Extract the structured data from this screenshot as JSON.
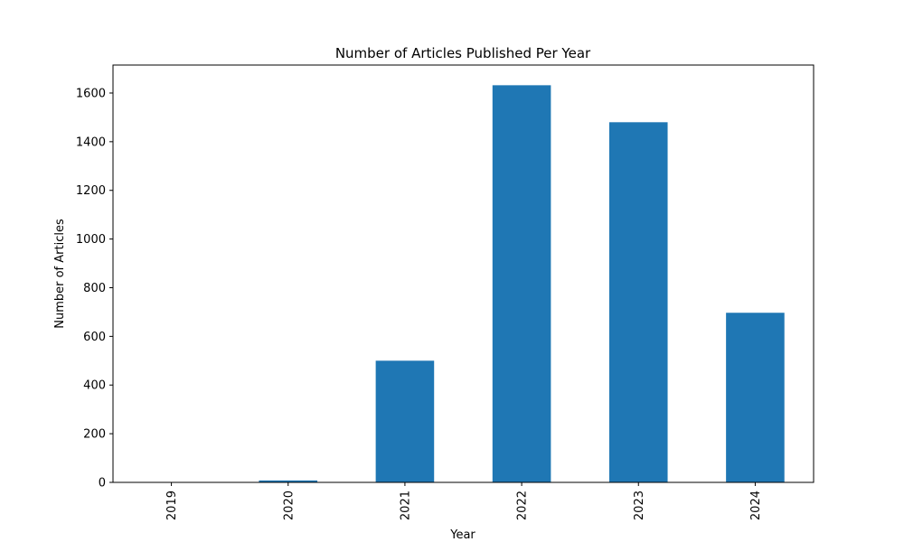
{
  "chart_data": {
    "type": "bar",
    "title": "Number of Articles Published Per Year",
    "xlabel": "Year",
    "ylabel": "Number of Articles",
    "categories": [
      "2019",
      "2020",
      "2021",
      "2022",
      "2023",
      "2024"
    ],
    "values": [
      1,
      8,
      500,
      1632,
      1480,
      697
    ],
    "ylim": [
      0,
      1715
    ],
    "yticks": [
      0,
      200,
      400,
      600,
      800,
      1000,
      1200,
      1400,
      1600
    ],
    "bar_color": "#1f77b4",
    "grid": false,
    "legend": "none"
  }
}
